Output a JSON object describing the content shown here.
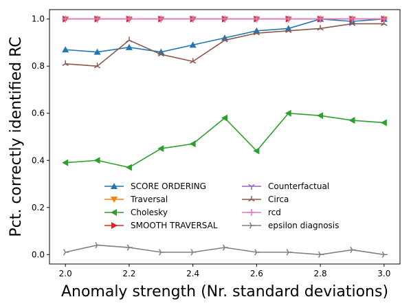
{
  "chart_data": {
    "type": "line",
    "xlabel": "Anomaly strength (Nr. standard deviations)",
    "ylabel": "Pct. correctly identified RC",
    "xlim": [
      1.95,
      3.05
    ],
    "ylim": [
      -0.04,
      1.04
    ],
    "xticks": [
      "2.0",
      "2.2",
      "2.4",
      "2.6",
      "2.8",
      "3.0"
    ],
    "yticks": [
      "0.0",
      "0.2",
      "0.4",
      "0.6",
      "0.8",
      "1.0"
    ],
    "grid": false,
    "legend_position": "lower-center",
    "x": [
      2.0,
      2.1,
      2.2,
      2.3,
      2.4,
      2.5,
      2.6,
      2.7,
      2.8,
      2.9,
      3.0
    ],
    "series": [
      {
        "name": "SCORE ORDERING",
        "color": "#1f77b4",
        "marker": "triangle-up",
        "values": [
          0.87,
          0.86,
          0.88,
          0.86,
          0.89,
          0.92,
          0.95,
          0.96,
          1.0,
          0.99,
          1.0
        ]
      },
      {
        "name": "Traversal",
        "color": "#ff7f0e",
        "marker": "triangle-down",
        "values": [
          1.0,
          1.0,
          1.0,
          1.0,
          1.0,
          1.0,
          1.0,
          1.0,
          1.0,
          1.0,
          1.0
        ]
      },
      {
        "name": "Cholesky",
        "color": "#2ca02c",
        "marker": "triangle-left",
        "values": [
          0.39,
          0.4,
          0.37,
          0.45,
          0.47,
          0.58,
          0.44,
          0.6,
          0.59,
          0.57,
          0.56
        ]
      },
      {
        "name": "SMOOTH TRAVERSAL",
        "color": "#d62728",
        "marker": "triangle-right",
        "values": [
          1.0,
          1.0,
          1.0,
          1.0,
          1.0,
          1.0,
          1.0,
          1.0,
          1.0,
          1.0,
          1.0
        ]
      },
      {
        "name": "Counterfactual",
        "color": "#9467bd",
        "marker": "tri-down",
        "values": [
          1.0,
          1.0,
          1.0,
          1.0,
          1.0,
          1.0,
          1.0,
          1.0,
          1.0,
          1.0,
          1.0
        ]
      },
      {
        "name": "Circa",
        "color": "#8c564b",
        "marker": "tri-up",
        "values": [
          0.81,
          0.8,
          0.91,
          0.85,
          0.82,
          0.91,
          0.94,
          0.95,
          0.96,
          0.98,
          0.98
        ]
      },
      {
        "name": "rcd",
        "color": "#e377c2",
        "marker": "plus",
        "values": [
          1.0,
          1.0,
          1.0,
          1.0,
          1.0,
          1.0,
          1.0,
          1.0,
          1.0,
          1.0,
          1.0
        ]
      },
      {
        "name": "epsilon diagnosis",
        "color": "#7f7f7f",
        "marker": "tri-right",
        "values": [
          0.01,
          0.04,
          0.03,
          0.01,
          0.01,
          0.03,
          0.01,
          0.01,
          0.0,
          0.02,
          0.0
        ]
      }
    ]
  }
}
